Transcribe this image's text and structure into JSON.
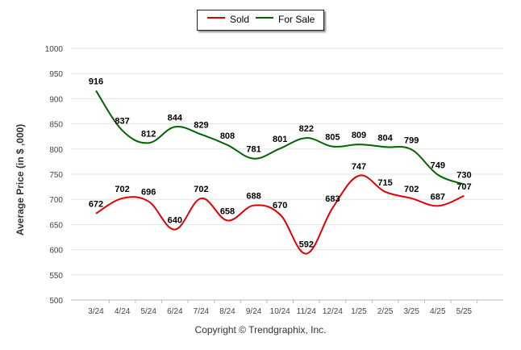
{
  "legend": {
    "sold_label": "Sold",
    "forsale_label": "For Sale"
  },
  "copyright": "Copyright © Trendgraphix, Inc.",
  "chart_data": {
    "type": "line",
    "title": "",
    "xlabel": "",
    "ylabel": "Average Price (in $ ,000)",
    "ylim": [
      500,
      1000
    ],
    "yticks": [
      500,
      550,
      600,
      650,
      700,
      750,
      800,
      850,
      900,
      950,
      1000
    ],
    "grid": true,
    "legend_position": "top-center",
    "categories": [
      "3/24",
      "4/24",
      "5/24",
      "6/24",
      "7/24",
      "8/24",
      "9/24",
      "10/24",
      "11/24",
      "12/24",
      "1/25",
      "2/25",
      "3/25",
      "4/25",
      "5/25"
    ],
    "series": [
      {
        "name": "Sold",
        "color": "#e00000",
        "values": [
          672,
          702,
          696,
          640,
          702,
          658,
          688,
          670,
          592,
          683,
          747,
          715,
          702,
          687,
          707
        ]
      },
      {
        "name": "For Sale",
        "color": "#006400",
        "values": [
          916,
          837,
          812,
          844,
          829,
          808,
          781,
          801,
          822,
          805,
          809,
          804,
          799,
          749,
          730
        ]
      }
    ]
  }
}
